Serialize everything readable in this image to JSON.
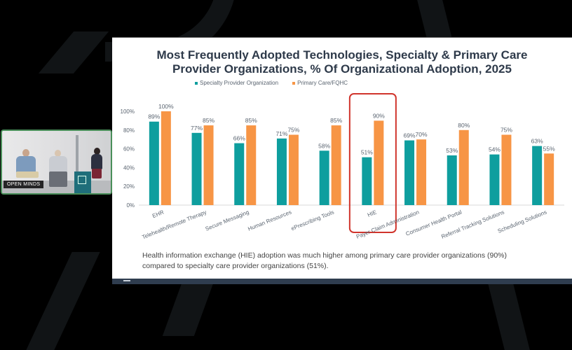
{
  "slide": {
    "title_line1": "Most Frequently Adopted Technologies, Specialty & Primary Care",
    "title_line2": "Provider Organizations, % Of Organizational Adoption, 2025",
    "caption_line1": "Health information exchange (HIE) adoption was much higher among primary care provider organizations (90%)",
    "caption_line2": "compared to  specialty care provider organizations (51%).",
    "highlight_category": "HIE",
    "colors": {
      "specialty": "#0e9e9e",
      "primary": "#f79545",
      "highlight_box": "#d0342c",
      "title": "#2e3a4a",
      "footer": "#2f3d4f"
    }
  },
  "video_tile": {
    "label": "OPEN MINDS"
  },
  "chart_data": {
    "type": "bar",
    "title": "Most Frequently Adopted Technologies, Specialty & Primary Care Provider Organizations, % Of Organizational Adoption, 2025",
    "xlabel": "",
    "ylabel": "",
    "ylim": [
      0,
      100
    ],
    "yticks": [
      "0%",
      "20%",
      "40%",
      "60%",
      "80%",
      "100%"
    ],
    "ytick_values": [
      0,
      20,
      40,
      60,
      80,
      100
    ],
    "grid": false,
    "legend_position": "top-left",
    "categories": [
      "EHR",
      "Telehealth/Remote Therapy",
      "Secure Messaging",
      "Human Resources",
      "ePrescribing Tools",
      "HIE",
      "Payer Claim Administration",
      "Consumer Health Portal",
      "Referral Tracking Solutions",
      "Scheduling Solutions"
    ],
    "series": [
      {
        "name": "Specialty Provider Organization",
        "values": [
          89,
          77,
          66,
          71,
          58,
          51,
          69,
          53,
          54,
          63
        ]
      },
      {
        "name": "Primary Care/FQHC",
        "values": [
          100,
          85,
          85,
          75,
          85,
          90,
          70,
          80,
          75,
          55
        ]
      }
    ],
    "value_labels": [
      [
        "89%",
        "77%",
        "66%",
        "71%",
        "58%",
        "51%",
        "69%",
        "53%",
        "54%",
        "63%"
      ],
      [
        "100%",
        "85%",
        "85%",
        "75%",
        "85%",
        "90%",
        "70%",
        "80%",
        "75%",
        "55%"
      ]
    ]
  }
}
